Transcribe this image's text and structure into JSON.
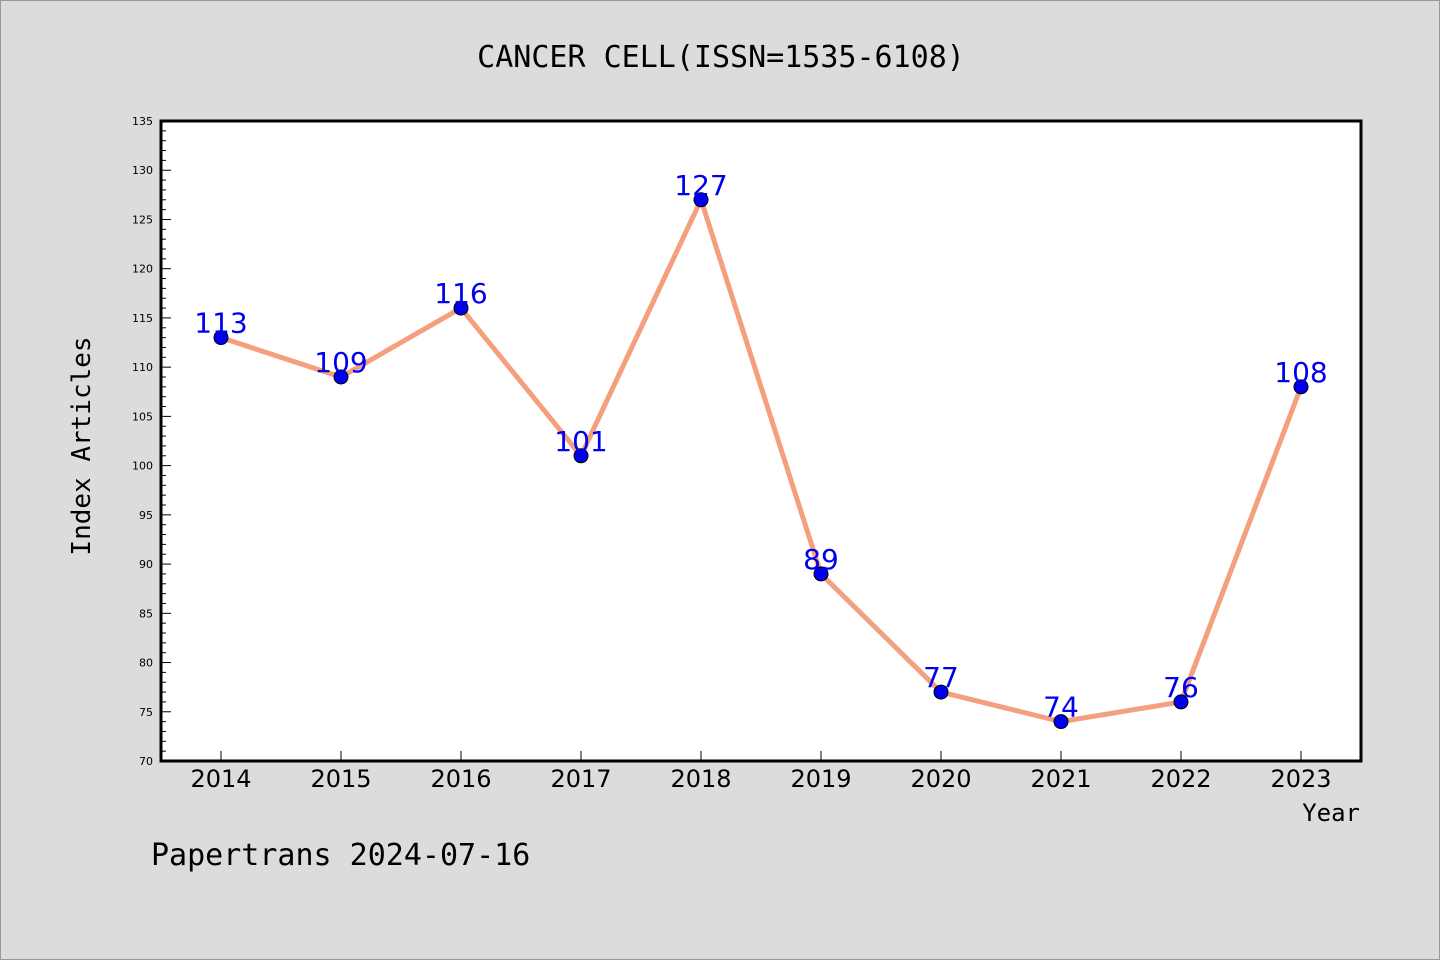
{
  "chart_data": {
    "type": "line",
    "title": "CANCER CELL(ISSN=1535-6108)",
    "xlabel": "Year",
    "ylabel": "Index Articles",
    "categories": [
      "2014",
      "2015",
      "2016",
      "2017",
      "2018",
      "2019",
      "2020",
      "2021",
      "2022",
      "2023"
    ],
    "series": [
      {
        "values": [
          113,
          109,
          116,
          101,
          127,
          89,
          77,
          74,
          76,
          108
        ],
        "line_color": "#f4a07e",
        "marker_color": "#0000ee",
        "label_color": "#0000ee"
      }
    ],
    "ylim": [
      70,
      135
    ],
    "y_major_step": 5,
    "y_minor_step": 1,
    "grid": false,
    "legend": "none"
  },
  "footer": {
    "caption": "Papertrans 2024-07-16"
  },
  "colors": {
    "background": "#dcdcdc",
    "plot_background": "#ffffff",
    "axis": "#000000"
  }
}
